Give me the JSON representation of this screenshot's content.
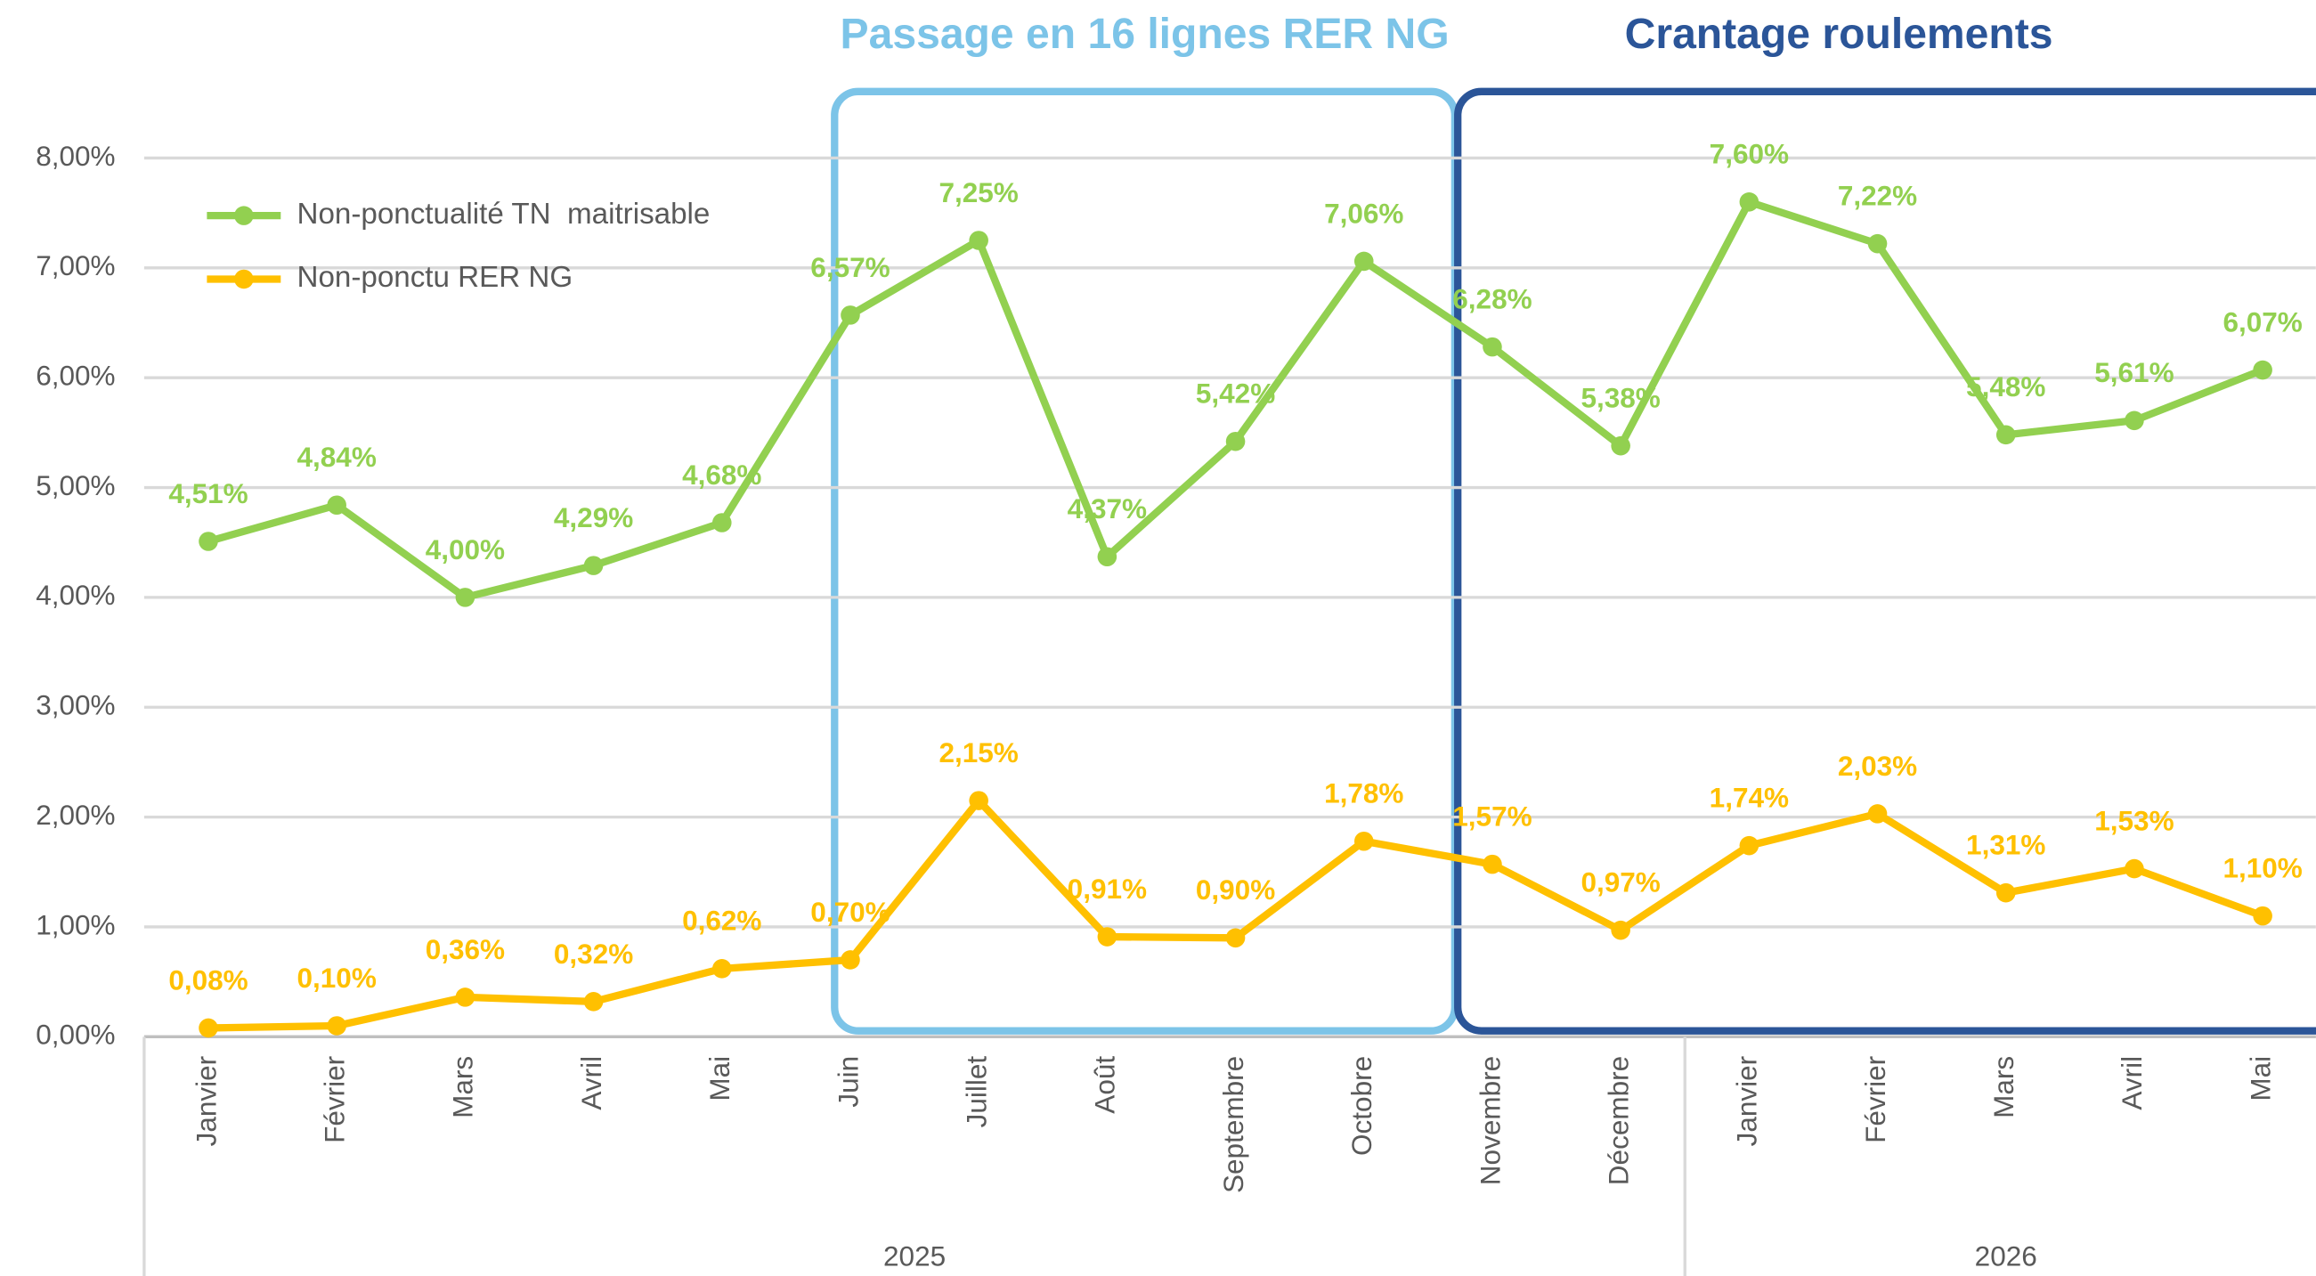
{
  "chart_data": {
    "type": "line",
    "annotations": [
      {
        "text": "Passage en 16 lignes RER NG",
        "color": "#7cc4e8"
      },
      {
        "text": "Crantage roulements",
        "color": "#2b5598"
      }
    ],
    "categories": [
      "Janvier",
      "Février",
      "Mars",
      "Avril",
      "Mai",
      "Juin",
      "Juillet",
      "Août",
      "Septembre",
      "Octobre",
      "Novembre",
      "Décembre",
      "Janvier",
      "Février",
      "Mars",
      "Avril",
      "Mai"
    ],
    "groups": [
      {
        "label": "2025",
        "size": 12
      },
      {
        "label": "2026",
        "size": 5
      }
    ],
    "series": [
      {
        "name": "Non-ponctualité TN  maitrisable",
        "color": "#92d050",
        "values": [
          4.51,
          4.84,
          4.0,
          4.29,
          4.68,
          6.57,
          7.25,
          4.37,
          5.42,
          7.06,
          6.28,
          5.38,
          7.6,
          7.22,
          5.48,
          5.61,
          6.07
        ],
        "value_labels": [
          "4,51%",
          "4,84%",
          "4,00%",
          "4,29%",
          "4,68%",
          "6,57%",
          "7,25%",
          "4,37%",
          "5,42%",
          "7,06%",
          "6,28%",
          "5,38%",
          "7,60%",
          "7,22%",
          "5,48%",
          "5,61%",
          "6,07%"
        ]
      },
      {
        "name": "Non-ponctu RER NG",
        "color": "#ffc000",
        "values": [
          0.08,
          0.1,
          0.36,
          0.32,
          0.62,
          0.7,
          2.15,
          0.91,
          0.9,
          1.78,
          1.57,
          0.97,
          1.74,
          2.03,
          1.31,
          1.53,
          1.1
        ],
        "value_labels": [
          "0,08%",
          "0,10%",
          "0,36%",
          "0,32%",
          "0,62%",
          "0,70%",
          "2,15%",
          "0,91%",
          "0,90%",
          "1,78%",
          "1,57%",
          "0,97%",
          "1,74%",
          "2,03%",
          "1,31%",
          "1,53%",
          "1,10%"
        ]
      }
    ],
    "ylim": [
      0,
      8
    ],
    "yticks": [
      {
        "value": 0,
        "label": "0,00%"
      },
      {
        "value": 1,
        "label": "1,00%"
      },
      {
        "value": 2,
        "label": "2,00%"
      },
      {
        "value": 3,
        "label": "3,00%"
      },
      {
        "value": 4,
        "label": "4,00%"
      },
      {
        "value": 5,
        "label": "5,00%"
      },
      {
        "value": 6,
        "label": "6,00%"
      },
      {
        "value": 7,
        "label": "7,00%"
      },
      {
        "value": 8,
        "label": "8,00%"
      }
    ],
    "grid": true,
    "legend": "top-left"
  }
}
